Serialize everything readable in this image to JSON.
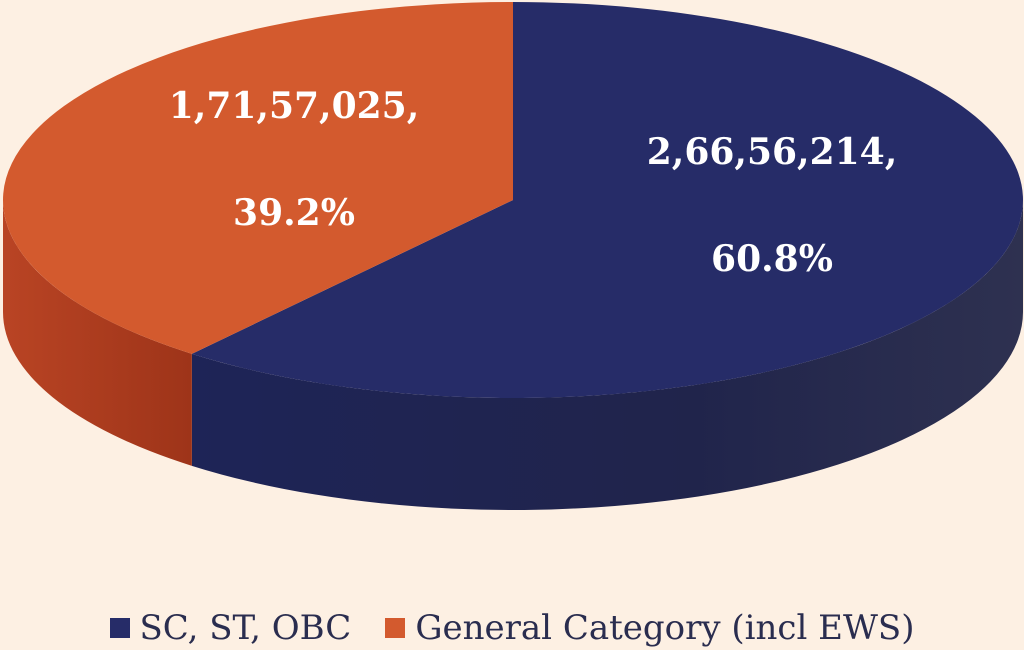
{
  "chart_data": {
    "type": "pie",
    "title": "",
    "slices": [
      {
        "label": "SC, ST, OBC",
        "value": 26656214,
        "value_text": "2,66,56,214,",
        "percent": 60.8,
        "percent_text": "60.8%",
        "color": "#262c68"
      },
      {
        "label": "General Category (incl EWS)",
        "value": 17157025,
        "value_text": "1,71,57,025,",
        "percent": 39.2,
        "percent_text": "39.2%",
        "color": "#d35a2e"
      }
    ],
    "start_angle_deg": 90,
    "legend": {
      "position": "bottom"
    },
    "style": "3d"
  },
  "background": "#fdf0e3"
}
